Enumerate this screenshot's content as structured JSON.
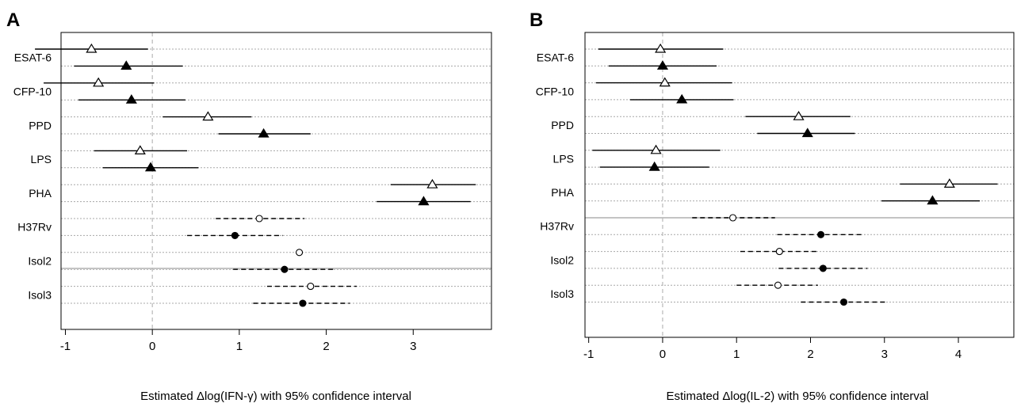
{
  "panels": [
    "A",
    "B"
  ],
  "chart_data": [
    {
      "type": "forest",
      "panel": "A",
      "xlabel": "Estimated Δlog(IFN-γ) with 95% confidence interval",
      "xlim": [
        -1.05,
        3.9
      ],
      "xticks": [
        -1,
        0,
        1,
        2,
        3
      ],
      "reference_line": 0,
      "categories": [
        "ESAT-6",
        "CFP-10",
        "PPD",
        "LPS",
        "PHA",
        "H37Rv",
        "Isol2",
        "Isol3"
      ],
      "rows": [
        {
          "category": "ESAT-6",
          "marker": "open-triangle",
          "line": "solid",
          "estimate": -0.7,
          "lower": -1.35,
          "upper": -0.05
        },
        {
          "category": "ESAT-6",
          "marker": "filled-triangle",
          "line": "solid",
          "estimate": -0.3,
          "lower": -0.9,
          "upper": 0.35
        },
        {
          "category": "CFP-10",
          "marker": "open-triangle",
          "line": "solid",
          "estimate": -0.62,
          "lower": -1.25,
          "upper": 0.02
        },
        {
          "category": "CFP-10",
          "marker": "filled-triangle",
          "line": "solid",
          "estimate": -0.24,
          "lower": -0.85,
          "upper": 0.38
        },
        {
          "category": "PPD",
          "marker": "open-triangle",
          "line": "solid",
          "estimate": 0.64,
          "lower": 0.12,
          "upper": 1.14
        },
        {
          "category": "PPD",
          "marker": "filled-triangle",
          "line": "solid",
          "estimate": 1.28,
          "lower": 0.76,
          "upper": 1.82
        },
        {
          "category": "LPS",
          "marker": "open-triangle",
          "line": "solid",
          "estimate": -0.14,
          "lower": -0.67,
          "upper": 0.4
        },
        {
          "category": "LPS",
          "marker": "filled-triangle",
          "line": "solid",
          "estimate": -0.02,
          "lower": -0.57,
          "upper": 0.53
        },
        {
          "category": "PHA",
          "marker": "open-triangle",
          "line": "solid",
          "estimate": 3.22,
          "lower": 2.74,
          "upper": 3.72
        },
        {
          "category": "PHA",
          "marker": "filled-triangle",
          "line": "solid",
          "estimate": 3.12,
          "lower": 2.58,
          "upper": 3.66
        },
        {
          "category": "H37Rv",
          "marker": "open-circle",
          "line": "dashed",
          "estimate": 1.23,
          "lower": 0.73,
          "upper": 1.75
        },
        {
          "category": "H37Rv",
          "marker": "filled-circle",
          "line": "dashed",
          "estimate": 0.95,
          "lower": 0.4,
          "upper": 1.5
        },
        {
          "category": "Isol2",
          "marker": "open-circle",
          "line": "dashed",
          "estimate": 1.69,
          "lower": 1.69,
          "upper": 1.69
        },
        {
          "category": "Isol2",
          "marker": "filled-circle",
          "line": "dashed",
          "estimate": 1.52,
          "lower": 0.93,
          "upper": 2.1
        },
        {
          "category": "Isol3",
          "marker": "open-circle",
          "line": "dashed",
          "estimate": 1.82,
          "lower": 1.32,
          "upper": 2.35
        },
        {
          "category": "Isol3",
          "marker": "filled-circle",
          "line": "dashed",
          "estimate": 1.73,
          "lower": 1.16,
          "upper": 2.27
        }
      ]
    },
    {
      "type": "forest",
      "panel": "B",
      "xlabel": "Estimated Δlog(IL-2) with 95% confidence interval",
      "xlim": [
        -1.05,
        4.75
      ],
      "xticks": [
        -1,
        0,
        1,
        2,
        3,
        4
      ],
      "reference_line": 0,
      "categories": [
        "ESAT-6",
        "CFP-10",
        "PPD",
        "LPS",
        "PHA",
        "H37Rv",
        "Isol2",
        "Isol3"
      ],
      "rows": [
        {
          "category": "ESAT-6",
          "marker": "open-triangle",
          "line": "solid",
          "estimate": -0.03,
          "lower": -0.87,
          "upper": 0.82
        },
        {
          "category": "ESAT-6",
          "marker": "filled-triangle",
          "line": "solid",
          "estimate": 0.0,
          "lower": -0.73,
          "upper": 0.73
        },
        {
          "category": "CFP-10",
          "marker": "open-triangle",
          "line": "solid",
          "estimate": 0.03,
          "lower": -0.9,
          "upper": 0.94
        },
        {
          "category": "CFP-10",
          "marker": "filled-triangle",
          "line": "solid",
          "estimate": 0.26,
          "lower": -0.44,
          "upper": 0.96
        },
        {
          "category": "PPD",
          "marker": "open-triangle",
          "line": "solid",
          "estimate": 1.84,
          "lower": 1.12,
          "upper": 2.54
        },
        {
          "category": "PPD",
          "marker": "filled-triangle",
          "line": "solid",
          "estimate": 1.96,
          "lower": 1.28,
          "upper": 2.6
        },
        {
          "category": "LPS",
          "marker": "open-triangle",
          "line": "solid",
          "estimate": -0.09,
          "lower": -0.95,
          "upper": 0.78
        },
        {
          "category": "LPS",
          "marker": "filled-triangle",
          "line": "solid",
          "estimate": -0.11,
          "lower": -0.85,
          "upper": 0.63
        },
        {
          "category": "PHA",
          "marker": "open-triangle",
          "line": "solid",
          "estimate": 3.88,
          "lower": 3.21,
          "upper": 4.53
        },
        {
          "category": "PHA",
          "marker": "filled-triangle",
          "line": "solid",
          "estimate": 3.65,
          "lower": 2.96,
          "upper": 4.29
        },
        {
          "category": "H37Rv",
          "marker": "open-circle",
          "line": "dashed",
          "estimate": 0.95,
          "lower": 0.4,
          "upper": 1.52
        },
        {
          "category": "H37Rv",
          "marker": "filled-circle",
          "line": "dashed",
          "estimate": 2.14,
          "lower": 1.55,
          "upper": 2.73
        },
        {
          "category": "Isol2",
          "marker": "open-circle",
          "line": "dashed",
          "estimate": 1.58,
          "lower": 1.05,
          "upper": 2.12
        },
        {
          "category": "Isol2",
          "marker": "filled-circle",
          "line": "dashed",
          "estimate": 2.17,
          "lower": 1.57,
          "upper": 2.77
        },
        {
          "category": "Isol3",
          "marker": "open-circle",
          "line": "dashed",
          "estimate": 1.56,
          "lower": 1.0,
          "upper": 2.1
        },
        {
          "category": "Isol3",
          "marker": "filled-circle",
          "line": "dashed",
          "estimate": 2.45,
          "lower": 1.87,
          "upper": 3.03
        }
      ]
    }
  ]
}
